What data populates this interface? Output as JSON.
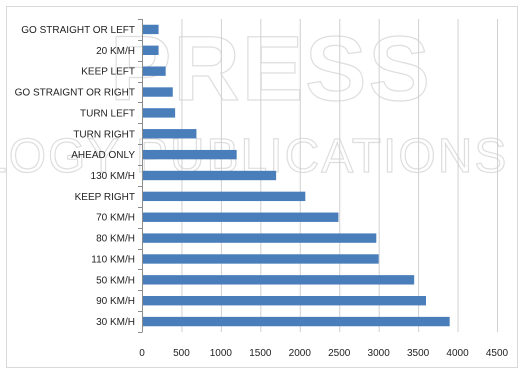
{
  "watermark": {
    "line1": "PRESS",
    "line2": "LOGY PUBLICATIONS"
  },
  "chart_data": {
    "type": "bar",
    "orientation": "horizontal",
    "categories": [
      "GO STRAIGHT OR LEFT",
      "20 KM/H",
      "KEEP LEFT",
      "GO STRAIGNT OR RIGHT",
      "TURN LEFT",
      "TURN RIGHT",
      "AHEAD ONLY",
      "130 KM/H",
      "KEEP RIGHT",
      "70 KM/H",
      "80 KM/H",
      "110 KM/H",
      "50 KM/H",
      "90 KM/H",
      "30 KM/H"
    ],
    "values": [
      210,
      210,
      300,
      390,
      420,
      690,
      1200,
      1700,
      2070,
      2490,
      2970,
      3000,
      3450,
      3600,
      3900
    ],
    "xlim": [
      0,
      4500
    ],
    "x_ticks": [
      0,
      500,
      1000,
      1500,
      2000,
      2500,
      3000,
      3500,
      4000,
      4500
    ],
    "grid": true,
    "bar_color": "#4a7ebb",
    "gridline_color": "#d0d0d0",
    "title": "",
    "xlabel": "",
    "ylabel": ""
  }
}
